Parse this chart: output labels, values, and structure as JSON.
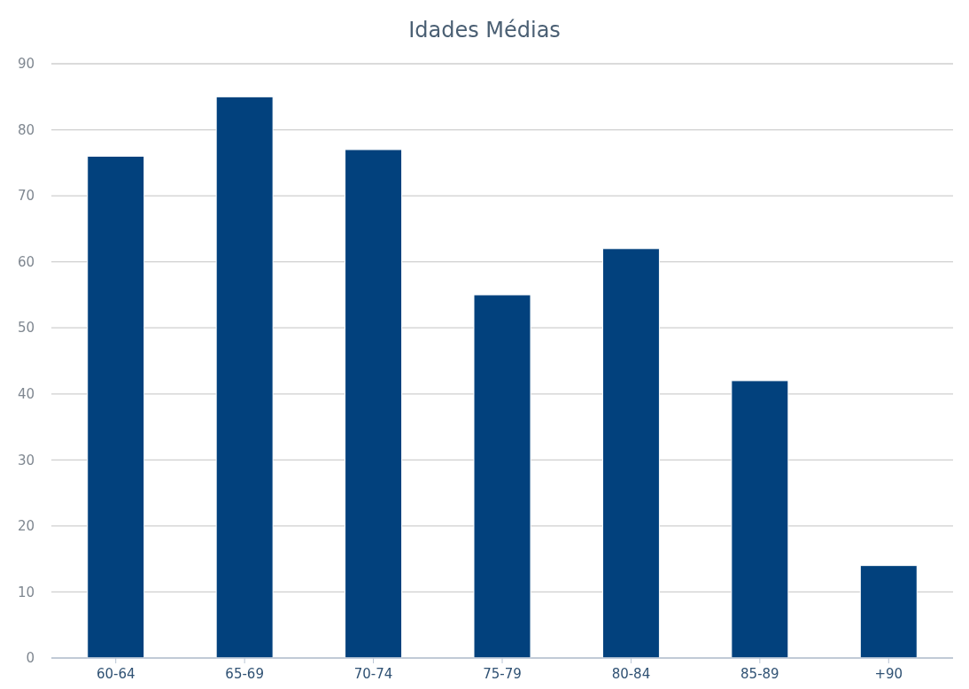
{
  "chart_data": {
    "type": "bar",
    "title": "Idades Médias",
    "categories": [
      "60-64",
      "65-69",
      "70-74",
      "75-79",
      "80-84",
      "85-89",
      "+90"
    ],
    "values": [
      76,
      85,
      77,
      55,
      62,
      42,
      14
    ],
    "color": "#02417d",
    "ylim": [
      0,
      90
    ],
    "yticks": [
      0,
      10,
      20,
      30,
      40,
      50,
      60,
      70,
      80,
      90
    ],
    "grid": "y"
  }
}
